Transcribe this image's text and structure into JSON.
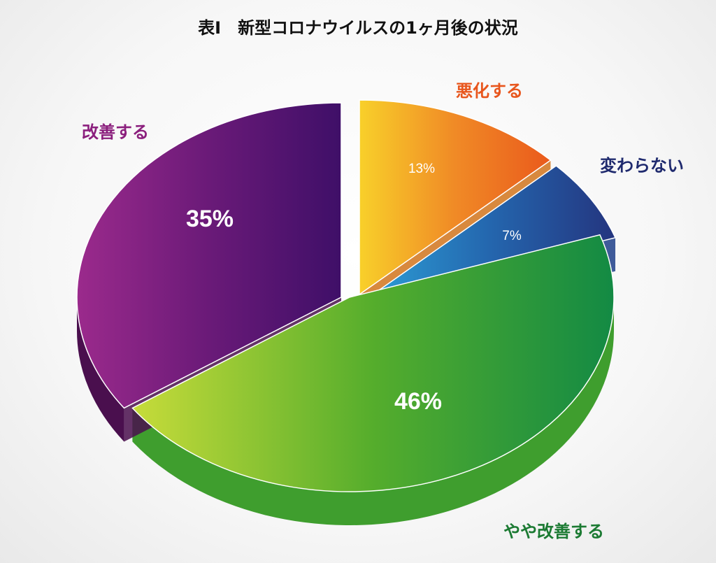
{
  "chart_data": {
    "type": "pie",
    "title": "表I　新型コロナウイルスの1ヶ月後の状況",
    "slices": [
      {
        "label": "悪化する",
        "value": 13,
        "value_label": "13%",
        "label_color": "#e8561d",
        "colors": [
          "#f8d02a",
          "#f08a26",
          "#ea5a1c"
        ],
        "side": "#d1741c"
      },
      {
        "label": "変わらない",
        "value": 7,
        "value_label": "7%",
        "label_color": "#1f2a6e",
        "colors": [
          "#2c9fd6",
          "#2466ae",
          "#24357f"
        ],
        "side": "#1e3f8a"
      },
      {
        "label": "やや改善する",
        "value": 46,
        "value_label": "46%",
        "label_color": "#1b7a32",
        "colors": [
          "#c7dc3a",
          "#55ad2c",
          "#138a44"
        ],
        "side": "#3f9e2e"
      },
      {
        "label": "改善する",
        "value": 35,
        "value_label": "35%",
        "label_color": "#8b1f7d",
        "colors": [
          "#9b2a8c",
          "#6a1a78",
          "#3f0f68"
        ],
        "side": "#4a0f4e"
      }
    ],
    "legend": "none"
  }
}
